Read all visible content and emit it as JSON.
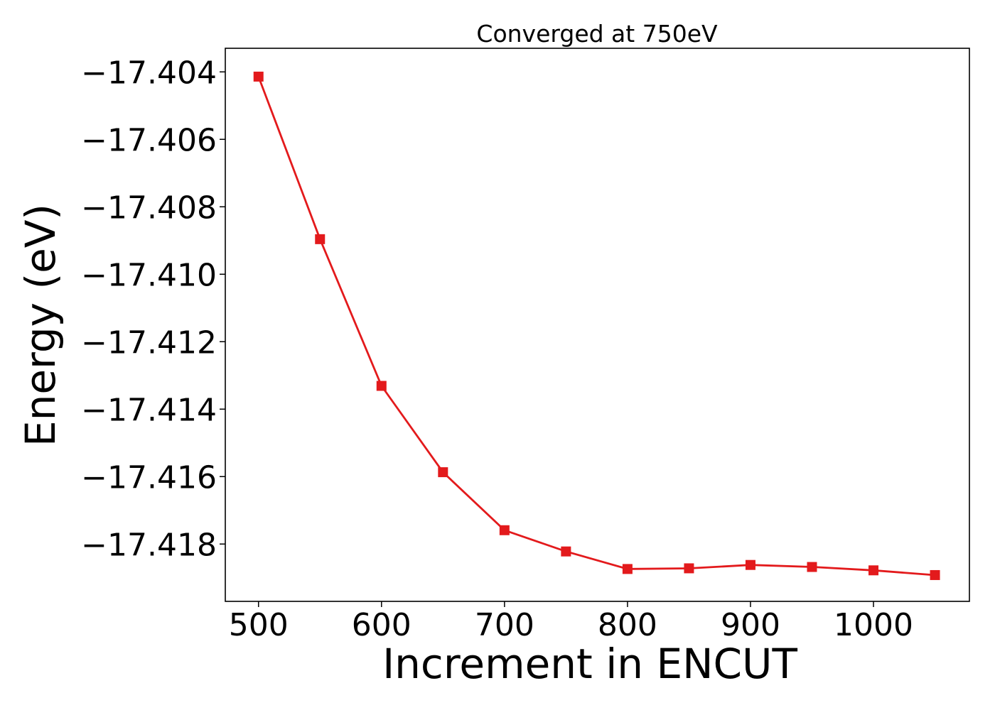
{
  "chart_data": {
    "type": "line",
    "title": "Converged at 750eV",
    "xlabel": "Increment in ENCUT",
    "ylabel": "Energy (eV)",
    "xlim": [
      473,
      1078
    ],
    "ylim": [
      -17.4197,
      -17.4033
    ],
    "xticks": [
      500,
      600,
      700,
      800,
      900,
      1000
    ],
    "yticks": [
      -17.404,
      -17.406,
      -17.408,
      -17.41,
      -17.412,
      -17.414,
      -17.416,
      -17.418
    ],
    "ytick_labels": [
      "−17.404",
      "−17.406",
      "−17.408",
      "−17.410",
      "−17.412",
      "−17.414",
      "−17.416",
      "−17.418"
    ],
    "grid": false,
    "marker": "square",
    "color": "#e31a1c",
    "series": [
      {
        "x": [
          500,
          550,
          600,
          650,
          700,
          750,
          800,
          850,
          900,
          950,
          1000,
          1050
        ],
        "y": [
          -17.40414,
          -17.40896,
          -17.41331,
          -17.41587,
          -17.41759,
          -17.41822,
          -17.41874,
          -17.41872,
          -17.41862,
          -17.41868,
          -17.41878,
          -17.41892
        ]
      }
    ]
  }
}
